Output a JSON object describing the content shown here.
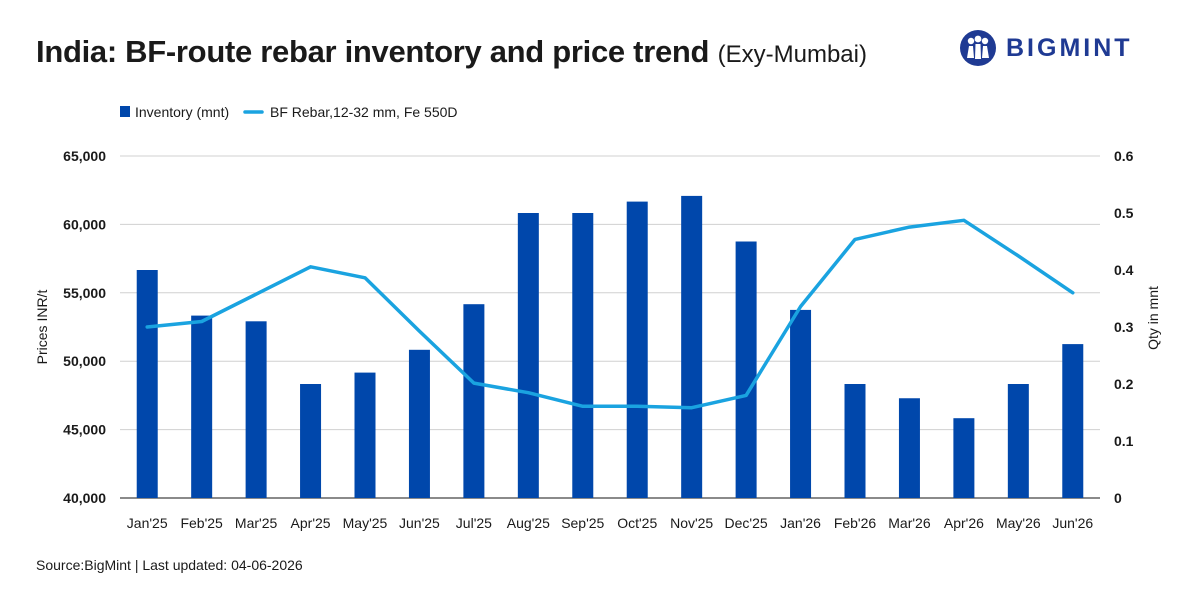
{
  "header": {
    "title": "India: BF-route rebar inventory and price trend",
    "subtitle": "(Exy-Mumbai)"
  },
  "logo": {
    "icon": "people-group-icon",
    "text": "BIGMINT",
    "color": "#1f3a93"
  },
  "footer": {
    "source": "Source:BigMint | Last updated: 04-06-2026"
  },
  "chart_data": {
    "type": "bar+line",
    "categories": [
      "Jan'25",
      "Feb'25",
      "Mar'25",
      "Apr'25",
      "May'25",
      "Jun'25",
      "Jul'25",
      "Aug'25",
      "Sep'25",
      "Oct'25",
      "Nov'25",
      "Dec'25",
      "Jan'26",
      "Feb'26",
      "Mar'26",
      "Apr'26",
      "May'26",
      "Jun'26"
    ],
    "series": [
      {
        "name": "Inventory (mnt)",
        "type": "bar",
        "axis": "right",
        "color": "#0047ab",
        "values": [
          0.4,
          0.32,
          0.31,
          0.2,
          0.22,
          0.26,
          0.34,
          0.5,
          0.5,
          0.52,
          0.53,
          0.45,
          0.33,
          0.2,
          0.175,
          0.14,
          0.2,
          0.27
        ]
      },
      {
        "name": "BF Rebar,12-32 mm, Fe 550D",
        "type": "line",
        "axis": "left",
        "color": "#1aa3e0",
        "values": [
          52500,
          52900,
          54900,
          56900,
          56100,
          52200,
          48400,
          47700,
          46700,
          46700,
          46600,
          47500,
          54000,
          58900,
          59800,
          60300,
          57700,
          55000
        ]
      }
    ],
    "y_left": {
      "label": "Prices INR/t",
      "min": 40000,
      "max": 65000,
      "ticks": [
        "40,000",
        "45,000",
        "50,000",
        "55,000",
        "60,000",
        "65,000"
      ]
    },
    "y_right": {
      "label": "Qty in mnt",
      "min": 0,
      "max": 0.6,
      "ticks": [
        "0",
        "0.1",
        "0.2",
        "0.3",
        "0.4",
        "0.5",
        "0.6"
      ]
    },
    "grid": true,
    "legend_position": "top-left"
  }
}
